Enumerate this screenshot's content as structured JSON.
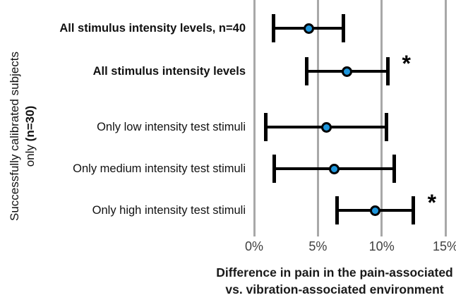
{
  "chart_data": {
    "type": "scatter",
    "subtype": "horizontal-error-bar-dot-plot",
    "title": "",
    "xlabel_line1": "Difference in pain in the pain-associated",
    "xlabel_line2": "vs. vibration-associated environment",
    "ylabel_line1": "Successfully calibrated subjects",
    "ylabel_line2_normal": "only ",
    "ylabel_line2_bold": "(n=30)",
    "units": "percent",
    "xlim": [
      0,
      15.8
    ],
    "grid": "vertical-major-only",
    "x_ticks": [
      {
        "label": "0%",
        "value": 0
      },
      {
        "label": "5%",
        "value": 5
      },
      {
        "label": "10%",
        "value": 10
      },
      {
        "label": "15%",
        "value": 15
      }
    ],
    "significance_marker": "*",
    "rows": [
      {
        "category": "All stimulus intensity levels, n=40",
        "bold": true,
        "mean": 4.3,
        "ci_low": 1.5,
        "ci_high": 7.0,
        "significant": false
      },
      {
        "category": "All stimulus intensity levels",
        "bold": true,
        "mean": 7.3,
        "ci_low": 4.1,
        "ci_high": 10.5,
        "significant": true
      },
      {
        "category": "Only low intensity test stimuli",
        "bold": false,
        "mean": 5.7,
        "ci_low": 0.9,
        "ci_high": 10.4,
        "significant": false
      },
      {
        "category": "Only medium intensity test stimuli",
        "bold": false,
        "mean": 6.3,
        "ci_low": 1.6,
        "ci_high": 11.0,
        "significant": false
      },
      {
        "category": "Only high intensity test stimuli",
        "bold": false,
        "mean": 9.5,
        "ci_low": 6.5,
        "ci_high": 12.5,
        "significant": true
      }
    ],
    "colors": {
      "marker_fill": "#1e96dc",
      "marker_outline": "#000000",
      "error_bar": "#000000",
      "gridline": "#a8a8a8",
      "tick_label": "#404040",
      "label_text": "#111111"
    }
  }
}
